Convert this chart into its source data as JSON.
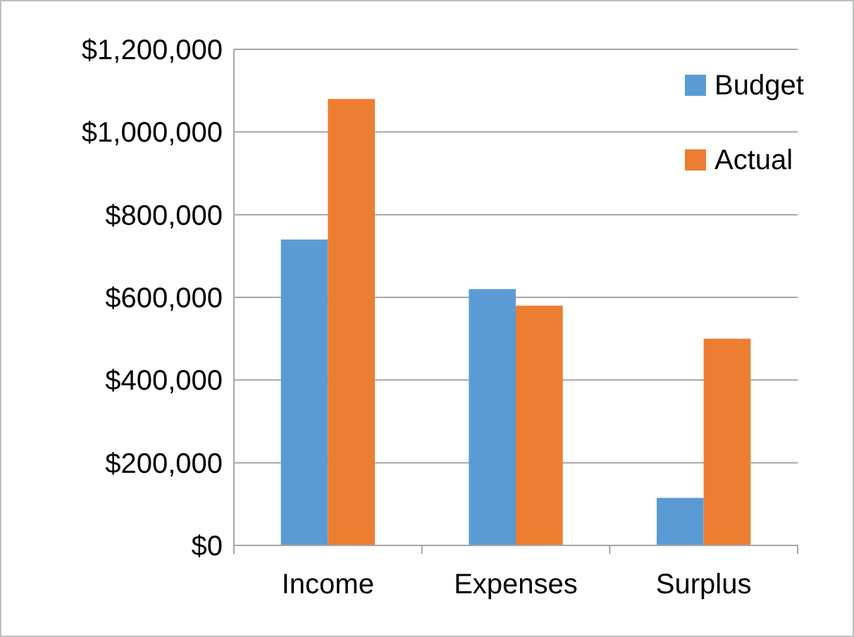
{
  "chart_data": {
    "type": "bar",
    "categories": [
      "Income",
      "Expenses",
      "Surplus"
    ],
    "series": [
      {
        "name": "Budget",
        "color": "#5b9bd5",
        "values": [
          740000,
          620000,
          115000
        ]
      },
      {
        "name": "Actual",
        "color": "#ed7d31",
        "values": [
          1080000,
          580000,
          500000
        ]
      }
    ],
    "ylim": [
      0,
      1200000
    ],
    "yticks": [
      {
        "value": 0,
        "label": "$0"
      },
      {
        "value": 200000,
        "label": "$200,000"
      },
      {
        "value": 400000,
        "label": "$400,000"
      },
      {
        "value": 600000,
        "label": "$600,000"
      },
      {
        "value": 800000,
        "label": "$800,000"
      },
      {
        "value": 1000000,
        "label": "$1,000,000"
      },
      {
        "value": 1200000,
        "label": "$1,200,000"
      }
    ],
    "grid": "y",
    "legend": "top right"
  }
}
